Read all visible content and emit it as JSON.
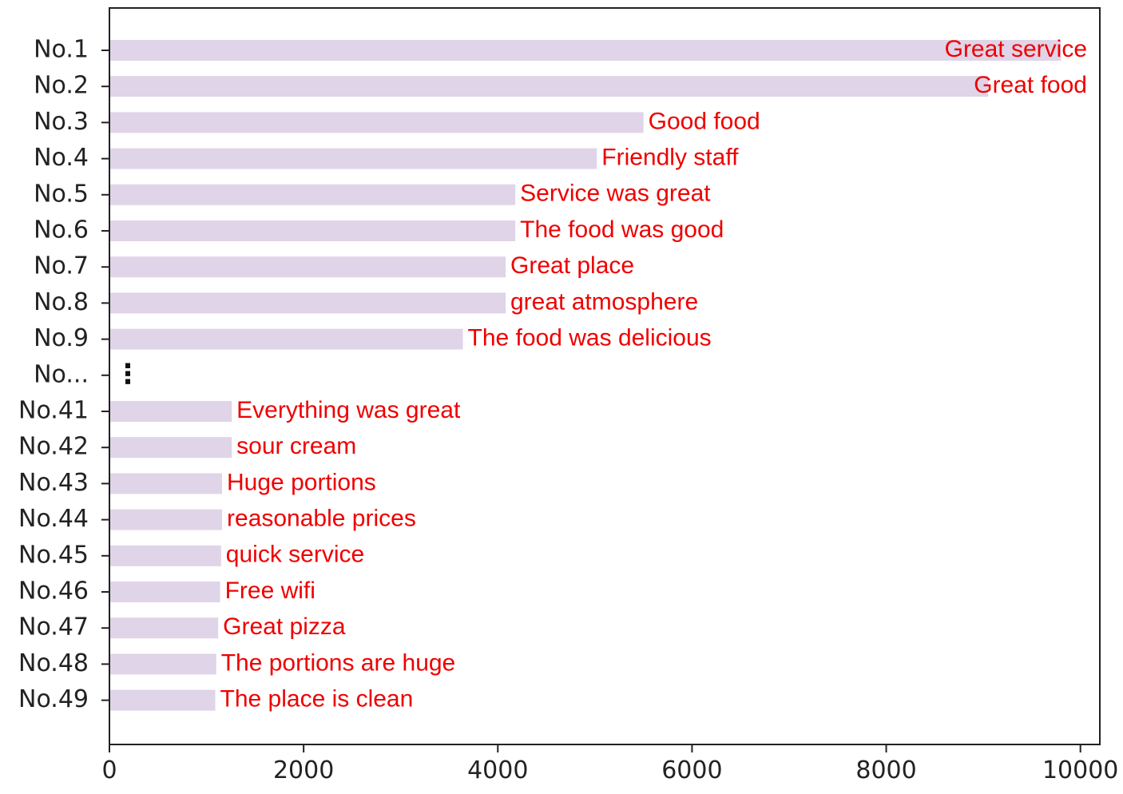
{
  "chart_data": {
    "type": "bar",
    "orientation": "horizontal",
    "title": "",
    "xlabel": "",
    "ylabel": "",
    "xlim": [
      0,
      10200
    ],
    "x_ticks": [
      "0",
      "2000",
      "4000",
      "6000",
      "8000",
      "10000"
    ],
    "grid": false,
    "legend": "none",
    "colors": {
      "bar": "#e0d4e8",
      "label": "#ee0000",
      "axis": "#222222"
    },
    "gap": {
      "category": "No...",
      "marker": "⋮"
    },
    "categories": [
      "No.1",
      "No.2",
      "No.3",
      "No.4",
      "No.5",
      "No.6",
      "No.7",
      "No.8",
      "No.9",
      "No.41",
      "No.42",
      "No.43",
      "No.44",
      "No.45",
      "No.46",
      "No.47",
      "No.48",
      "No.49"
    ],
    "values": [
      9800,
      9050,
      5500,
      5020,
      4180,
      4180,
      4080,
      4080,
      3640,
      1260,
      1260,
      1160,
      1160,
      1150,
      1140,
      1120,
      1100,
      1090
    ],
    "labels": [
      "Great service",
      "Great food",
      "Good food",
      "Friendly staff",
      "Service was great",
      "The food was good",
      "Great place",
      "great atmosphere",
      "The food was delicious",
      "Everything was great",
      "sour cream",
      "Huge portions",
      "reasonable prices",
      "quick service",
      "Free wifi",
      "Great pizza",
      "The portions are huge",
      "The place is clean"
    ]
  }
}
